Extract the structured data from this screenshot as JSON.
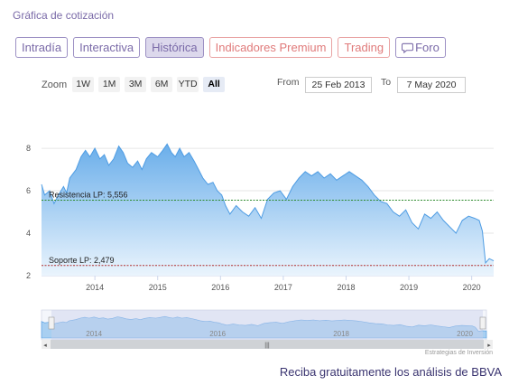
{
  "page": {
    "heading": "Gráfica de cotización"
  },
  "tabs": [
    {
      "label": "Intradía",
      "style": "purple",
      "active": false
    },
    {
      "label": "Interactiva",
      "style": "purple",
      "active": false
    },
    {
      "label": "Histórica",
      "style": "purple",
      "active": true
    },
    {
      "label": "Indicadores Premium",
      "style": "red",
      "active": false
    },
    {
      "label": "Trading",
      "style": "red",
      "active": false
    },
    {
      "label": "Foro",
      "style": "purple",
      "active": false,
      "icon": "chat-bubble-icon"
    }
  ],
  "toolbar": {
    "zoom_label": "Zoom",
    "zoom_buttons": [
      "1W",
      "1M",
      "3M",
      "6M",
      "YTD",
      "All"
    ],
    "selected_zoom": "All",
    "from_label": "From",
    "from_value": "25 Feb 2013",
    "to_label": "To",
    "to_value": "7 May 2020"
  },
  "colors": {
    "area_fill_top": "#6aaeea",
    "area_fill_bottom": "#eaf4fd",
    "line": "#4e9ce3",
    "resistance_line": "#2e8b2e",
    "support_line": "#b03030",
    "accent_purple": "#7a6aa8",
    "accent_red": "#e07a7a"
  },
  "chart_data": {
    "type": "area",
    "title": "",
    "xlabel": "",
    "ylabel": "",
    "xlim": [
      2013.15,
      2020.35
    ],
    "ylim": [
      2,
      8.6
    ],
    "x_ticks": [
      2014,
      2015,
      2016,
      2017,
      2018,
      2019,
      2020
    ],
    "x_tick_labels": [
      "2014",
      "2015",
      "2016",
      "2017",
      "2018",
      "2019",
      "2020"
    ],
    "y_ticks": [
      2,
      4,
      6,
      8
    ],
    "y_tick_labels": [
      "2",
      "4",
      "6",
      "8"
    ],
    "grid": "horizontal",
    "series": [
      {
        "x": [
          2013.15,
          2013.2,
          2013.28,
          2013.35,
          2013.42,
          2013.5,
          2013.55,
          2013.6,
          2013.7,
          2013.78,
          2013.85,
          2013.92,
          2014.0,
          2014.08,
          2014.15,
          2014.22,
          2014.3,
          2014.38,
          2014.45,
          2014.52,
          2014.6,
          2014.68,
          2014.75,
          2014.82,
          2014.9,
          2015.0,
          2015.08,
          2015.15,
          2015.22,
          2015.28,
          2015.35,
          2015.42,
          2015.5,
          2015.58,
          2015.65,
          2015.72,
          2015.8,
          2015.88,
          2015.95,
          2016.02,
          2016.08,
          2016.15,
          2016.25,
          2016.35,
          2016.45,
          2016.55,
          2016.65,
          2016.75,
          2016.85,
          2016.95,
          2017.05,
          2017.15,
          2017.25,
          2017.35,
          2017.45,
          2017.55,
          2017.65,
          2017.75,
          2017.85,
          2017.95,
          2018.05,
          2018.15,
          2018.25,
          2018.35,
          2018.45,
          2018.55,
          2018.65,
          2018.75,
          2018.85,
          2018.95,
          2019.05,
          2019.15,
          2019.25,
          2019.35,
          2019.45,
          2019.55,
          2019.65,
          2019.75,
          2019.85,
          2019.95,
          2020.05,
          2020.12,
          2020.17,
          2020.22,
          2020.28,
          2020.35
        ],
        "values": [
          6.3,
          5.8,
          6.0,
          5.4,
          5.8,
          6.2,
          5.9,
          6.6,
          7.0,
          7.6,
          7.9,
          7.6,
          8.0,
          7.5,
          7.7,
          7.2,
          7.5,
          8.1,
          7.8,
          7.3,
          7.1,
          7.4,
          7.0,
          7.5,
          7.8,
          7.6,
          7.9,
          8.2,
          7.8,
          7.6,
          8.0,
          7.6,
          7.8,
          7.4,
          7.0,
          6.6,
          6.3,
          6.4,
          6.0,
          5.8,
          5.3,
          4.9,
          5.3,
          5.0,
          4.8,
          5.2,
          4.7,
          5.6,
          5.9,
          6.0,
          5.6,
          6.2,
          6.6,
          6.9,
          6.7,
          6.9,
          6.6,
          6.8,
          6.5,
          6.7,
          6.9,
          6.7,
          6.5,
          6.2,
          5.8,
          5.5,
          5.4,
          5.0,
          4.8,
          5.1,
          4.5,
          4.2,
          4.9,
          4.7,
          5.0,
          4.6,
          4.3,
          4.0,
          4.6,
          4.8,
          4.7,
          4.6,
          4.1,
          2.6,
          2.8,
          2.7
        ]
      }
    ],
    "annotations": [
      {
        "label": "Resistencia LP: 5,556",
        "y": 5.556,
        "color": "#2e8b2e"
      },
      {
        "label": "Soporte LP: 2,479",
        "y": 2.479,
        "color": "#b03030"
      }
    ],
    "navigator": {
      "x_tick_labels": [
        "2014",
        "2016",
        "2018",
        "2020"
      ],
      "x_ticks": [
        2014,
        2016,
        2018,
        2020
      ]
    }
  },
  "footer": {
    "credit": "Estrategias de Inversión",
    "cta": "Reciba gratuitamente los análisis de BBVA"
  }
}
